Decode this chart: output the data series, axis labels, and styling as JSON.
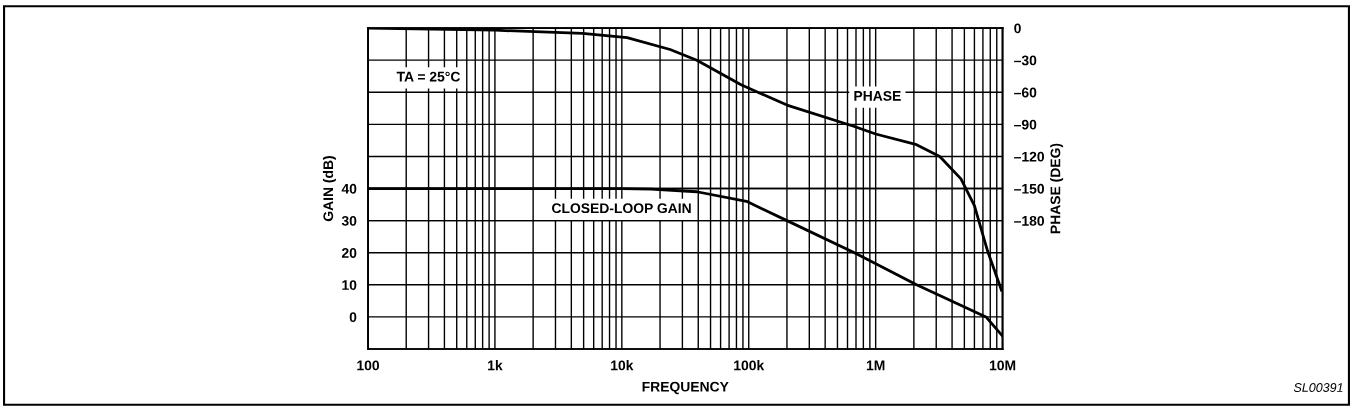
{
  "chart_data": {
    "type": "line",
    "xlabel": "FREQUENCY",
    "ylabel": "GAIN (dB)",
    "y2label": "PHASE (DEG)",
    "log": "x",
    "grid": true,
    "line_style": "solid",
    "marker": "none",
    "xlim": [
      100,
      10000000
    ],
    "xticks": [
      {
        "value": 100,
        "label": "100"
      },
      {
        "value": 1000,
        "label": "1k"
      },
      {
        "value": 10000,
        "label": "10k"
      },
      {
        "value": 100000,
        "label": "100k"
      },
      {
        "value": 1000000,
        "label": "1M"
      },
      {
        "value": 10000000,
        "label": "10M"
      }
    ],
    "ylim": [
      -10,
      90
    ],
    "yticks": [
      0,
      10,
      20,
      30,
      40
    ],
    "y2lim": [
      -300,
      0
    ],
    "y2ticks": [
      0,
      {
        "value": -30,
        "label": "–30"
      },
      {
        "value": -60,
        "label": "–60"
      },
      {
        "value": -90,
        "label": "–90"
      },
      {
        "value": -120,
        "label": "–120"
      },
      {
        "value": -150,
        "label": "–150"
      },
      {
        "value": -180,
        "label": "–180"
      }
    ],
    "series": [
      {
        "name": "CLOSED-LOOP GAIN",
        "color": "#000000",
        "x": [
          100,
          1000,
          10000,
          17000,
          39000,
          96000,
          200000,
          680000,
          2100000,
          7400000,
          10000000
        ],
        "values": [
          40,
          40,
          40,
          39.8,
          39,
          36,
          30,
          20,
          10,
          0,
          -6
        ]
      },
      {
        "name": "PHASE",
        "color": "#000000",
        "axis": "y2",
        "x": [
          100,
          1000,
          4900,
          11000,
          24000,
          39000,
          87000,
          200000,
          680000,
          1000000,
          2100000,
          3200000,
          4700000,
          6000000,
          7600000,
          9800000
        ],
        "values": [
          0,
          -2,
          -5,
          -9,
          -20,
          -30,
          -53,
          -72,
          -92,
          -99,
          -109,
          -120,
          -141,
          -166,
          -208,
          -245
        ]
      }
    ],
    "annotations": [
      "TA = 25°C",
      "SL00391"
    ]
  }
}
